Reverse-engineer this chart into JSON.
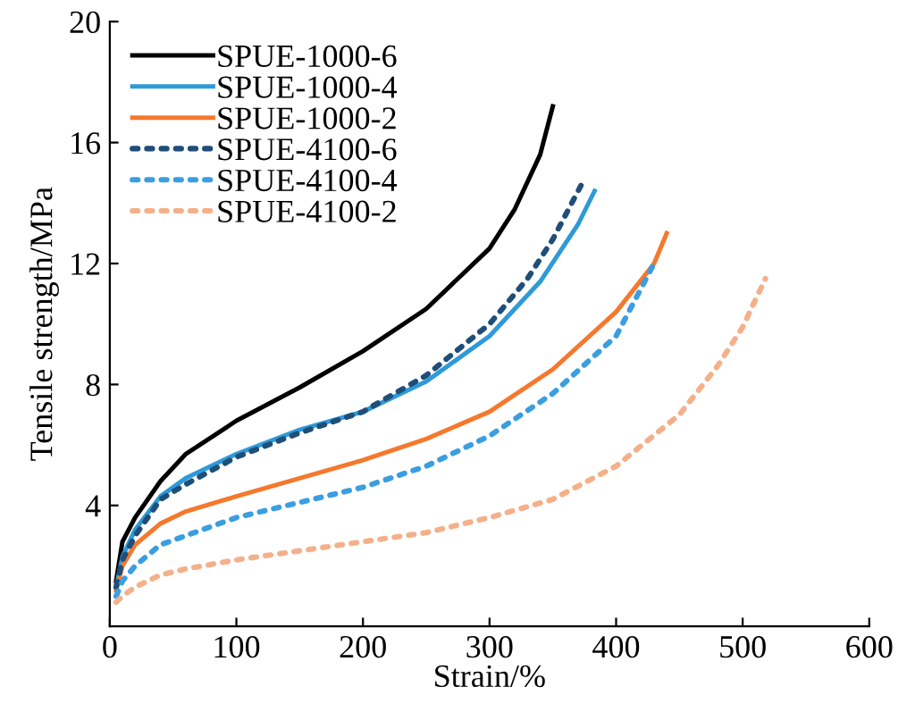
{
  "chart_data": {
    "type": "line",
    "xlabel": "Strain/%",
    "ylabel": "Tensile strength/MPa",
    "xlim": [
      0,
      600
    ],
    "xticks": [
      0,
      100,
      200,
      300,
      400,
      500,
      600
    ],
    "ylim": [
      0,
      20
    ],
    "yticks": [
      4,
      8,
      12,
      16,
      20
    ],
    "grid": false,
    "legend": "top left",
    "marker": "none",
    "series": [
      {
        "name": "SPUE-1000-6",
        "color": "#000000",
        "line_style": "solid",
        "x": [
          5,
          10,
          20,
          40,
          60,
          100,
          150,
          200,
          250,
          300,
          320,
          340,
          350
        ],
        "values": [
          1.5,
          2.8,
          3.6,
          4.8,
          5.7,
          6.8,
          7.9,
          9.1,
          10.5,
          12.5,
          13.8,
          15.6,
          17.2
        ]
      },
      {
        "name": "SPUE-1000-4",
        "color": "#2e9ad8",
        "line_style": "solid",
        "x": [
          5,
          10,
          20,
          40,
          60,
          100,
          150,
          200,
          250,
          300,
          340,
          370,
          383
        ],
        "values": [
          1.3,
          2.3,
          3.2,
          4.3,
          4.9,
          5.7,
          6.5,
          7.1,
          8.1,
          9.6,
          11.4,
          13.3,
          14.4
        ]
      },
      {
        "name": "SPUE-1000-2",
        "color": "#f5782d",
        "line_style": "solid",
        "x": [
          5,
          10,
          20,
          40,
          60,
          100,
          150,
          200,
          250,
          300,
          350,
          400,
          430,
          440
        ],
        "values": [
          1.2,
          2.0,
          2.7,
          3.4,
          3.8,
          4.3,
          4.9,
          5.5,
          6.2,
          7.1,
          8.5,
          10.4,
          12.0,
          13.0
        ]
      },
      {
        "name": "SPUE-4100-6",
        "color": "#1f4e79",
        "line_style": "dotted",
        "x": [
          5,
          10,
          20,
          40,
          60,
          100,
          150,
          200,
          250,
          300,
          330,
          350,
          375
        ],
        "values": [
          1.3,
          2.2,
          3.0,
          4.2,
          4.7,
          5.6,
          6.4,
          7.1,
          8.3,
          10.0,
          11.5,
          12.8,
          14.8
        ]
      },
      {
        "name": "SPUE-4100-4",
        "color": "#3a9ee0",
        "line_style": "dotted",
        "x": [
          5,
          10,
          20,
          40,
          60,
          100,
          150,
          200,
          250,
          300,
          350,
          400,
          430
        ],
        "values": [
          1.0,
          1.5,
          2.0,
          2.7,
          3.0,
          3.6,
          4.1,
          4.6,
          5.3,
          6.3,
          7.7,
          9.6,
          12.0
        ]
      },
      {
        "name": "SPUE-4100-2",
        "color": "#f4b08a",
        "line_style": "dotted",
        "x": [
          5,
          10,
          20,
          40,
          60,
          100,
          150,
          200,
          250,
          300,
          350,
          400,
          450,
          480,
          500,
          518
        ],
        "values": [
          0.8,
          1.0,
          1.3,
          1.7,
          1.9,
          2.2,
          2.5,
          2.8,
          3.1,
          3.6,
          4.2,
          5.3,
          7.0,
          8.6,
          9.9,
          11.5
        ]
      }
    ]
  }
}
